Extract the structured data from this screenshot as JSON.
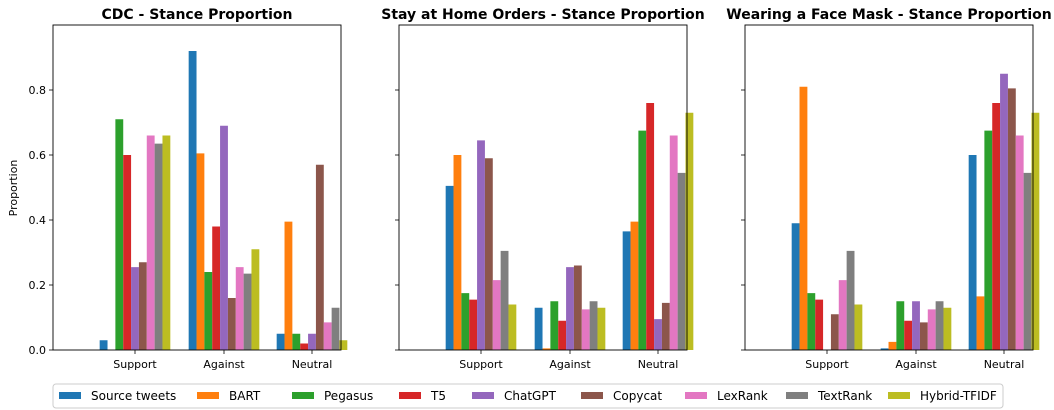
{
  "chart_data": {
    "type": "bar",
    "ylabel": "Proportion",
    "ylim": [
      0,
      1.0
    ],
    "yticks": [
      "0.0",
      "0.2",
      "0.4",
      "0.6",
      "0.8"
    ],
    "categories": [
      "Support",
      "Against",
      "Neutral"
    ],
    "legend": {
      "placement": "bottom",
      "entries": [
        {
          "name": "Source tweets",
          "color": "#1f77b4"
        },
        {
          "name": "BART",
          "color": "#ff7f0e"
        },
        {
          "name": "Pegasus",
          "color": "#2ca02c"
        },
        {
          "name": "T5",
          "color": "#d62728"
        },
        {
          "name": "ChatGPT",
          "color": "#9467bd"
        },
        {
          "name": "Copycat",
          "color": "#8c564b"
        },
        {
          "name": "LexRank",
          "color": "#e377c2"
        },
        {
          "name": "TextRank",
          "color": "#7f7f7f"
        },
        {
          "name": "Hybrid-TFIDF",
          "color": "#bcbd22"
        }
      ]
    },
    "charts": [
      {
        "title": "CDC - Stance Proportion",
        "series": [
          {
            "name": "Source tweets",
            "values": [
              0.03,
              0.92,
              0.05
            ]
          },
          {
            "name": "BART",
            "values": [
              0.0,
              0.605,
              0.395
            ]
          },
          {
            "name": "Pegasus",
            "values": [
              0.71,
              0.24,
              0.05
            ]
          },
          {
            "name": "T5",
            "values": [
              0.6,
              0.38,
              0.02
            ]
          },
          {
            "name": "ChatGPT",
            "values": [
              0.255,
              0.69,
              0.05
            ]
          },
          {
            "name": "Copycat",
            "values": [
              0.27,
              0.16,
              0.57
            ]
          },
          {
            "name": "LexRank",
            "values": [
              0.66,
              0.255,
              0.085
            ]
          },
          {
            "name": "TextRank",
            "values": [
              0.635,
              0.235,
              0.13
            ]
          },
          {
            "name": "Hybrid-TFIDF",
            "values": [
              0.66,
              0.31,
              0.03
            ]
          }
        ]
      },
      {
        "title": "Stay at Home Orders - Stance Proportion",
        "series": [
          {
            "name": "Source tweets",
            "values": [
              0.505,
              0.13,
              0.365
            ]
          },
          {
            "name": "BART",
            "values": [
              0.6,
              0.005,
              0.395
            ]
          },
          {
            "name": "Pegasus",
            "values": [
              0.175,
              0.15,
              0.675
            ]
          },
          {
            "name": "T5",
            "values": [
              0.155,
              0.09,
              0.76
            ]
          },
          {
            "name": "ChatGPT",
            "values": [
              0.645,
              0.255,
              0.095
            ]
          },
          {
            "name": "Copycat",
            "values": [
              0.59,
              0.26,
              0.145
            ]
          },
          {
            "name": "LexRank",
            "values": [
              0.215,
              0.125,
              0.66
            ]
          },
          {
            "name": "TextRank",
            "values": [
              0.305,
              0.15,
              0.545
            ]
          },
          {
            "name": "Hybrid-TFIDF",
            "values": [
              0.14,
              0.13,
              0.73
            ]
          }
        ]
      },
      {
        "title": "Wearing a Face Mask - Stance Proportion",
        "series": [
          {
            "name": "Source tweets",
            "values": [
              0.39,
              0.005,
              0.6
            ]
          },
          {
            "name": "BART",
            "values": [
              0.81,
              0.025,
              0.165
            ]
          },
          {
            "name": "Pegasus",
            "values": [
              0.175,
              0.15,
              0.675
            ]
          },
          {
            "name": "T5",
            "values": [
              0.155,
              0.09,
              0.76
            ]
          },
          {
            "name": "ChatGPT",
            "values": [
              0.0,
              0.15,
              0.85
            ]
          },
          {
            "name": "Copycat",
            "values": [
              0.11,
              0.085,
              0.805
            ]
          },
          {
            "name": "LexRank",
            "values": [
              0.215,
              0.125,
              0.66
            ]
          },
          {
            "name": "TextRank",
            "values": [
              0.305,
              0.15,
              0.545
            ]
          },
          {
            "name": "Hybrid-TFIDF",
            "values": [
              0.14,
              0.13,
              0.73
            ]
          }
        ]
      }
    ]
  }
}
